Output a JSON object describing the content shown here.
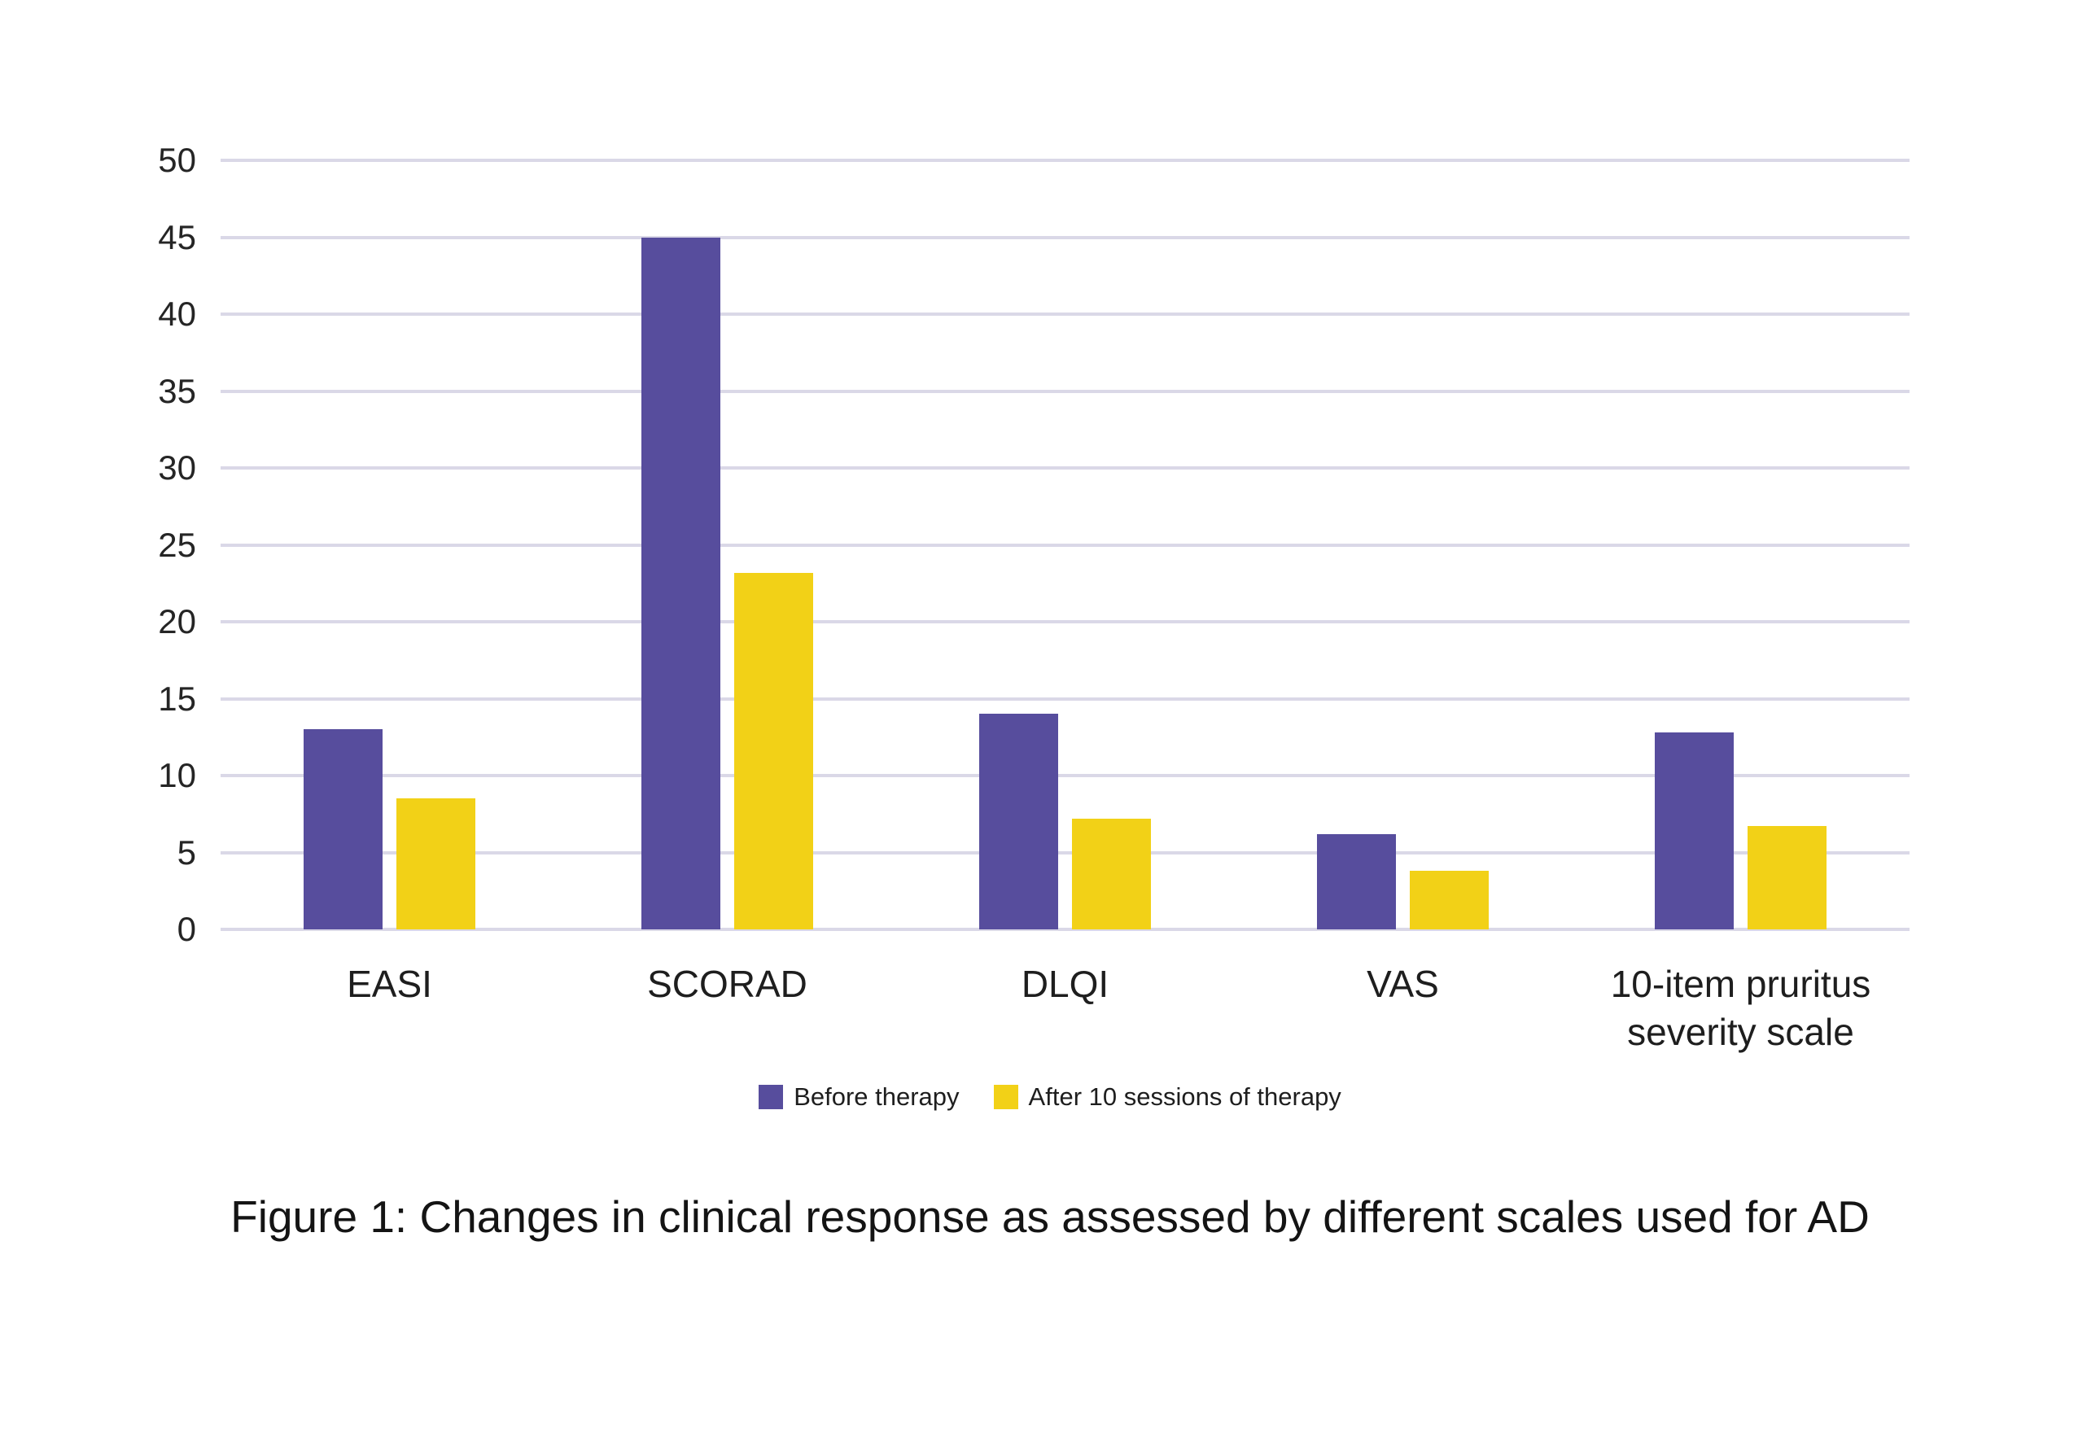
{
  "figure": {
    "caption": "Figure 1: Changes in clinical response as assessed by different scales used for AD"
  },
  "chart_data": {
    "type": "bar",
    "categories": [
      "EASI",
      "SCORAD",
      "DLQI",
      "VAS",
      "10-item pruritus severity scale"
    ],
    "series": [
      {
        "name": "Before therapy",
        "color": "#574d9d",
        "values": [
          13,
          45,
          14,
          6.2,
          12.8
        ]
      },
      {
        "name": "After 10 sessions of therapy",
        "color": "#f2d117",
        "values": [
          8.5,
          23.2,
          7.2,
          3.8,
          6.7
        ]
      }
    ],
    "title": "",
    "xlabel": "",
    "ylabel": "",
    "ylim": [
      0,
      50
    ],
    "yticks": [
      0,
      5,
      10,
      15,
      20,
      25,
      30,
      35,
      40,
      45,
      50
    ],
    "grid": true,
    "gridline_color": "#dad8e7",
    "legend_position": "bottom",
    "background_color": "#ffffff"
  }
}
